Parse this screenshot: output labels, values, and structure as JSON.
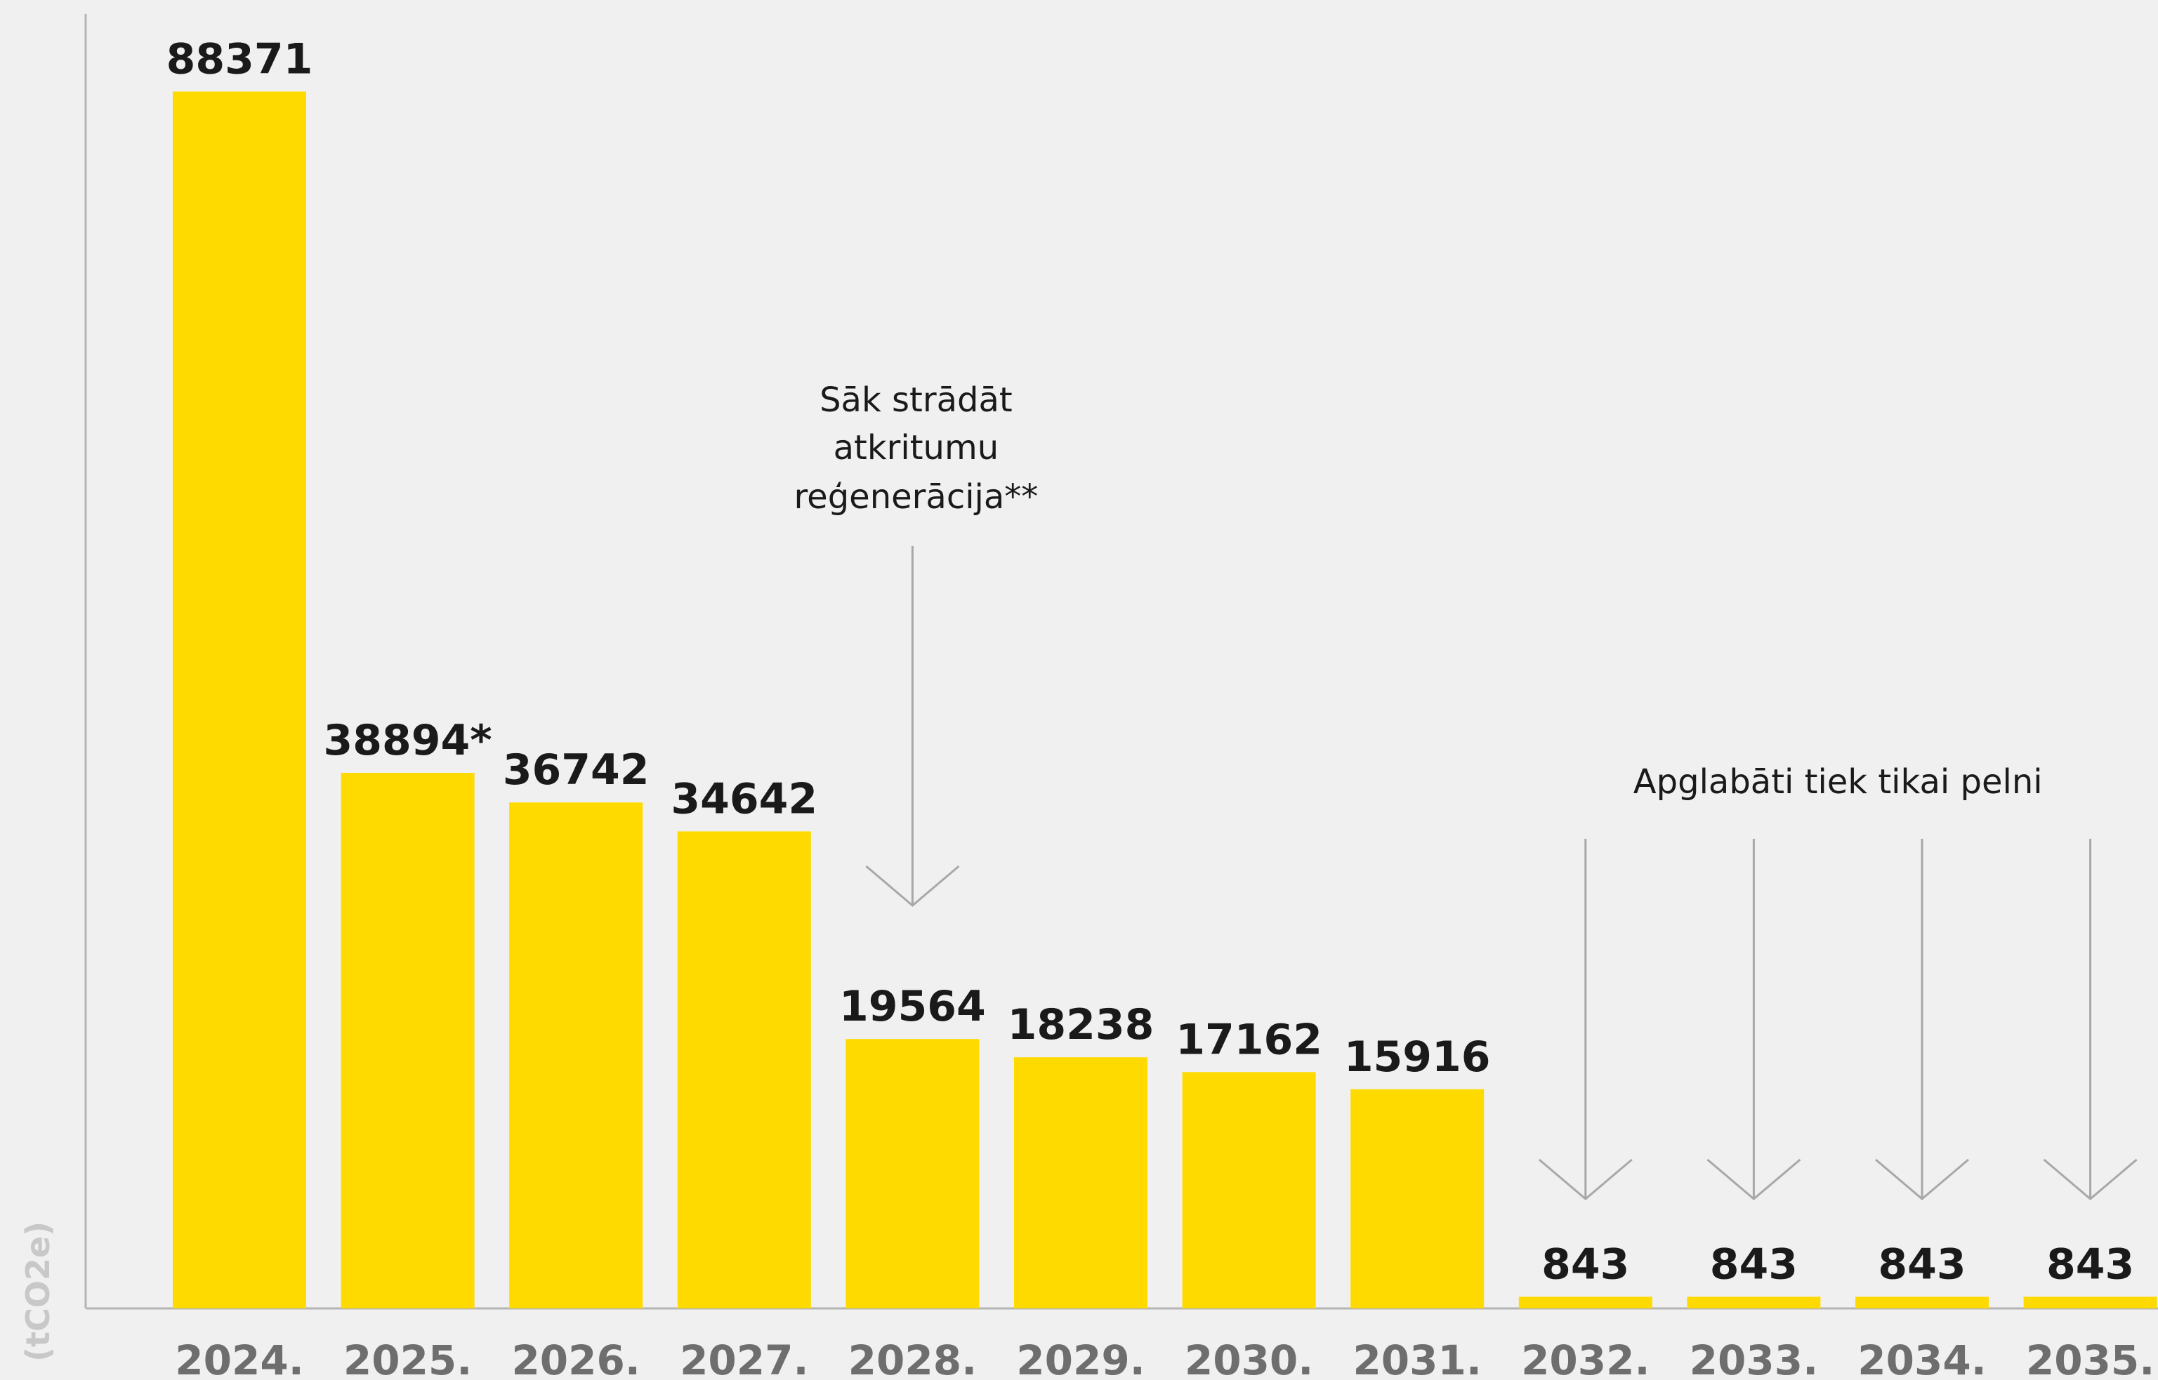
{
  "chart_data": {
    "type": "bar",
    "categories": [
      "2024.",
      "2025.",
      "2026.",
      "2027.",
      "2028.",
      "2029.",
      "2030.",
      "2031.",
      "2032.",
      "2033.",
      "2034.",
      "2035."
    ],
    "values": [
      88371,
      38894,
      36742,
      34642,
      19564,
      18238,
      17162,
      15916,
      843,
      843,
      843,
      843
    ],
    "value_labels": [
      "88371",
      "38894*",
      "36742",
      "34642",
      "19564",
      "18238",
      "17162",
      "15916",
      "843",
      "843",
      "843",
      "843"
    ],
    "ylabel": "(tCO2e)",
    "ylim": [
      0,
      94000
    ],
    "grid": false,
    "bar_color": "#FFDA00",
    "annotations": [
      {
        "lines": [
          "Sāk strādāt",
          "atkritumu",
          "reģenerācija**"
        ],
        "target_categories": [
          "2028."
        ]
      },
      {
        "lines": [
          "Apglabāti tiek tikai pelni"
        ],
        "target_categories": [
          "2032.",
          "2033.",
          "2034.",
          "2035."
        ]
      }
    ]
  }
}
